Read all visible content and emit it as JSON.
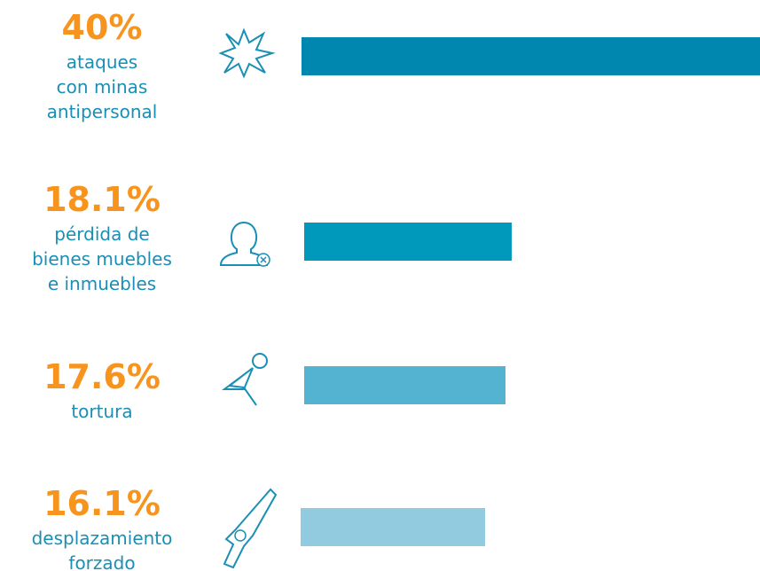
{
  "chart_data": {
    "type": "bar",
    "categories": [
      "ataques\ncon minas\nantipersonal",
      "pérdida de\nbienes muebles\ne inmuebles",
      "tortura",
      "desplazamiento\nforzado"
    ],
    "values": [
      40,
      18.1,
      17.6,
      16.1
    ],
    "value_labels": [
      "40%",
      "18.1%",
      "17.6%",
      "16.1%"
    ],
    "colors": [
      "#0087b0",
      "#0098bb",
      "#55b3d2",
      "#92cae0"
    ]
  }
}
